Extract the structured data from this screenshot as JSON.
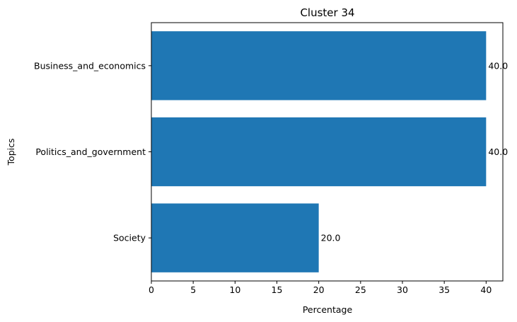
{
  "chart_data": {
    "type": "bar",
    "orientation": "horizontal",
    "title": "Cluster 34",
    "xlabel": "Percentage",
    "ylabel": "Topics",
    "categories": [
      "Business_and_economics",
      "Politics_and_government",
      "Society"
    ],
    "values": [
      40,
      40,
      20
    ],
    "value_labels": [
      "40.0",
      "40.0",
      "20.0"
    ],
    "x_ticks": [
      "0",
      "5",
      "10",
      "15",
      "20",
      "25",
      "30",
      "35",
      "40"
    ],
    "xlim": [
      0,
      42
    ],
    "grid": false,
    "legend": "none",
    "bar_color": "#1f77b4"
  }
}
